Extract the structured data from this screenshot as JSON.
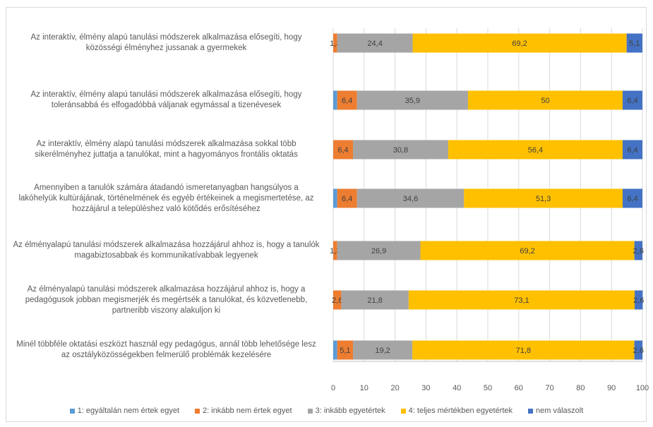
{
  "chart_data": {
    "type": "bar",
    "orientation": "horizontal",
    "stacked": true,
    "categories": [
      "Az interaktív, élmény alapú tanulási módszerek alkalmazása elősegíti, hogy közösségi élményhez jussanak a gyermekek",
      "Az interaktív, élmény alapú tanulási módszerek alkalmazása elősegíti, hogy toleránsabbá és elfogadóbbá váljanak egymással a tizenévesek",
      "Az interaktív, élmény alapú tanulási módszerek alkalmazása sokkal több sikerélményhez juttatja a tanulókat, mint a hagyományos frontális oktatás",
      "Amennyiben a tanulók számára átadandó ismeretanyagban hangsúlyos a lakóhelyük kultúrájának, történelmének és egyéb értékeinek a megismertetése, az hozzájárul a településhez való kötődés erősítéséhez",
      "Az élményalapú tanulási módszerek alkalmazása hozzájárul ahhoz is, hogy a tanulók magabiztosabbak és kommunikatívabbak legyenek",
      "Az élményalapú tanulási módszerek alkalmazása hozzájárul ahhoz is, hogy a pedagógusok jobban megismerjék és megértsék a tanulókat, és közvetlenebb, partneribb viszony alakuljon ki",
      "Minél többféle oktatási eszközt használ egy pedagógus, annál több lehetősége lesz az osztályközösségekben felmerülő problémák kezelésére"
    ],
    "category_lines": [
      [
        "Az interaktív, élmény alapú tanulási módszerek alkalmazása elősegíti, hogy",
        "közösségi élményhez jussanak a gyermekek"
      ],
      [
        "Az interaktív, élmény alapú tanulási módszerek alkalmazása elősegíti, hogy",
        "toleránsabbá és elfogadóbbá váljanak egymással a tizenévesek"
      ],
      [
        "Az interaktív, élmény alapú tanulási módszerek alkalmazása sokkal több",
        "sikerélményhez juttatja a tanulókat, mint a hagyományos frontális oktatás"
      ],
      [
        "Amennyiben a tanulók számára átadandó ismeretanyagban hangsúlyos a",
        "lakóhelyük kultúrájának, történelmének és egyéb értékeinek a megismertetése, az",
        "hozzájárul a településhez való kötődés erősítéséhez"
      ],
      [
        "Az élményalapú tanulási módszerek alkalmazása hozzájárul ahhoz is, hogy a tanulók",
        "magabiztosabbak és kommunikatívabbak legyenek"
      ],
      [
        "Az élményalapú tanulási módszerek alkalmazása hozzájárul ahhoz is, hogy a",
        "pedagógusok jobban megismerjék és megértsék a tanulókat, és közvetlenebb,",
        "partneribb viszony alakuljon ki"
      ],
      [
        "Minél többféle oktatási eszközt használ egy pedagógus, annál több lehetősége lesz",
        "az osztályközösségekben felmerülő problémák kezelésére"
      ]
    ],
    "series": [
      {
        "name": "1: egyáltalán nem értek egyet",
        "color": "#5b9bd5",
        "values": [
          0,
          1.3,
          0,
          1.3,
          0,
          0,
          1.3
        ],
        "labels": [
          "",
          "",
          "",
          "",
          "",
          "",
          ""
        ]
      },
      {
        "name": "2: inkább nem értek egyet",
        "color": "#ed7d31",
        "values": [
          1.3,
          6.4,
          6.4,
          6.4,
          1.3,
          2.6,
          5.1
        ],
        "labels": [
          "1,3",
          "6,4",
          "6,4",
          "6,4",
          "1,3",
          "2,6",
          "5,1"
        ]
      },
      {
        "name": "3: inkább egyetértek",
        "color": "#a5a5a5",
        "values": [
          24.4,
          35.9,
          30.8,
          34.6,
          26.9,
          21.8,
          19.2
        ],
        "labels": [
          "24,4",
          "35,9",
          "30,8",
          "34,6",
          "26,9",
          "21,8",
          "19,2"
        ]
      },
      {
        "name": "4: teljes mértékben egyetértek",
        "color": "#ffc000",
        "values": [
          69.2,
          50,
          56.4,
          51.3,
          69.2,
          73.1,
          71.8
        ],
        "labels": [
          "69,2",
          "50",
          "56,4",
          "51,3",
          "69,2",
          "73,1",
          "71,8"
        ]
      },
      {
        "name": "nem válaszolt",
        "color": "#4472c4",
        "values": [
          5.1,
          6.4,
          6.4,
          6.4,
          2.6,
          2.6,
          2.6
        ],
        "labels": [
          "5,1",
          "6,4",
          "6,4",
          "6,4",
          "2,6",
          "2,6",
          "2,6"
        ]
      }
    ],
    "xlim": [
      0,
      100
    ],
    "xticks": [
      0,
      10,
      20,
      30,
      40,
      50,
      60,
      70,
      80,
      90,
      100
    ],
    "grid": true,
    "legend_position": "bottom"
  }
}
